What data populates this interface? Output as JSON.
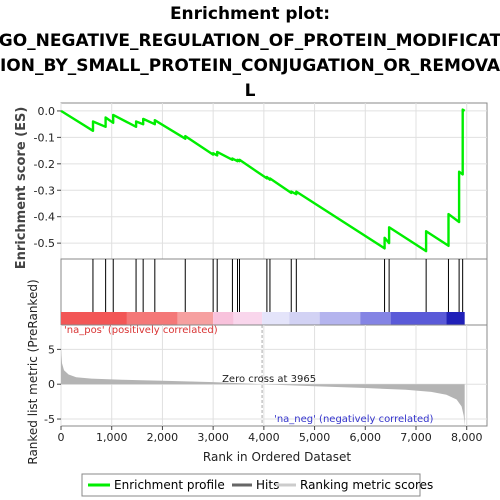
{
  "chart_data": {
    "type": "line",
    "title_lines": [
      "Enrichment plot:",
      "GO_NEGATIVE_REGULATION_OF_PROTEIN_MODIFICAT",
      "ION_BY_SMALL_PROTEIN_CONJUGATION_OR_REMOVA",
      "L"
    ],
    "xlabel": "Rank in Ordered Dataset",
    "es_ylabel": "Enrichment score (ES)",
    "metric_ylabel": "Ranked list metric (PreRanked)",
    "xlim": [
      0,
      8400
    ],
    "es_ylim": [
      -0.56,
      0.03
    ],
    "metric_ylim": [
      -6,
      8.5
    ],
    "x_ticks": [
      0,
      1000,
      2000,
      3000,
      4000,
      5000,
      6000,
      7000,
      8000
    ],
    "x_tick_labels": [
      "0",
      "1,000",
      "2,000",
      "3,000",
      "4,000",
      "5,000",
      "6,000",
      "7,000",
      "8,000"
    ],
    "es_ticks": [
      0.0,
      -0.1,
      -0.2,
      -0.3,
      -0.4,
      -0.5
    ],
    "es_tick_labels": [
      "0.0",
      "-0.1",
      "-0.2",
      "-0.3",
      "-0.4",
      "-0.5"
    ],
    "metric_ticks": [
      5,
      0,
      -5
    ],
    "metric_tick_labels": [
      "5",
      "0",
      "-5"
    ],
    "es_curve": {
      "name": "Enrichment profile",
      "color": "#00ee00",
      "points": [
        [
          0,
          0.0
        ],
        [
          630,
          -0.075
        ],
        [
          630,
          -0.04
        ],
        [
          880,
          -0.06
        ],
        [
          880,
          -0.025
        ],
        [
          1030,
          -0.045
        ],
        [
          1030,
          -0.015
        ],
        [
          1480,
          -0.06
        ],
        [
          1480,
          -0.04
        ],
        [
          1620,
          -0.05
        ],
        [
          1620,
          -0.03
        ],
        [
          1850,
          -0.05
        ],
        [
          1850,
          -0.035
        ],
        [
          2450,
          -0.105
        ],
        [
          2450,
          -0.095
        ],
        [
          3000,
          -0.165
        ],
        [
          3000,
          -0.16
        ],
        [
          3080,
          -0.168
        ],
        [
          3080,
          -0.155
        ],
        [
          3380,
          -0.185
        ],
        [
          3380,
          -0.18
        ],
        [
          3480,
          -0.19
        ],
        [
          3480,
          -0.185
        ],
        [
          3520,
          -0.19
        ],
        [
          3520,
          -0.185
        ],
        [
          4060,
          -0.255
        ],
        [
          4060,
          -0.25
        ],
        [
          4120,
          -0.26
        ],
        [
          4120,
          -0.255
        ],
        [
          4540,
          -0.31
        ],
        [
          4540,
          -0.305
        ],
        [
          4640,
          -0.315
        ],
        [
          4640,
          -0.305
        ],
        [
          6380,
          -0.52
        ],
        [
          6380,
          -0.48
        ],
        [
          6470,
          -0.5
        ],
        [
          6470,
          -0.44
        ],
        [
          7200,
          -0.53
        ],
        [
          7200,
          -0.455
        ],
        [
          7640,
          -0.51
        ],
        [
          7640,
          -0.39
        ],
        [
          7850,
          -0.42
        ],
        [
          7850,
          -0.23
        ],
        [
          7920,
          -0.24
        ],
        [
          7920,
          0.005
        ],
        [
          7960,
          0.0
        ]
      ]
    },
    "hits": {
      "name": "Hits",
      "color": "#000000",
      "ranks": [
        630,
        880,
        1030,
        1480,
        1620,
        1850,
        2450,
        3000,
        3080,
        3380,
        3480,
        3520,
        4060,
        4120,
        4540,
        4640,
        6380,
        6470,
        7200,
        7640,
        7850,
        7920
      ]
    },
    "ranking": {
      "name": "Ranking metric scores",
      "color": "#b4b4b4",
      "n_genes": 7960,
      "zero_cross": 3965,
      "zero_cross_label": "Zero cross at 3965",
      "pos_label": "'na_pos' (positively correlated)",
      "neg_label": "'na_neg' (negatively correlated)",
      "profile": [
        [
          0,
          5.2
        ],
        [
          20,
          3.0
        ],
        [
          60,
          2.0
        ],
        [
          150,
          1.4
        ],
        [
          300,
          1.0
        ],
        [
          600,
          0.8
        ],
        [
          1200,
          0.65
        ],
        [
          2000,
          0.5
        ],
        [
          3000,
          0.3
        ],
        [
          3965,
          0.0
        ],
        [
          5000,
          -0.3
        ],
        [
          6000,
          -0.55
        ],
        [
          6800,
          -0.8
        ],
        [
          7300,
          -1.1
        ],
        [
          7600,
          -1.5
        ],
        [
          7800,
          -2.2
        ],
        [
          7900,
          -3.2
        ],
        [
          7940,
          -4.5
        ],
        [
          7960,
          -6.0
        ]
      ]
    },
    "colorbar": [
      {
        "start": 0,
        "end": 1300,
        "color": "#f25656"
      },
      {
        "start": 1300,
        "end": 2300,
        "color": "#f47878"
      },
      {
        "start": 2300,
        "end": 3000,
        "color": "#f6a0a0"
      },
      {
        "start": 3000,
        "end": 3400,
        "color": "#f8c2dc"
      },
      {
        "start": 3400,
        "end": 3965,
        "color": "#f9d6ec"
      },
      {
        "start": 3965,
        "end": 4500,
        "color": "#e4e4fa"
      },
      {
        "start": 4500,
        "end": 5100,
        "color": "#d2d2f4"
      },
      {
        "start": 5100,
        "end": 5900,
        "color": "#b4b4ee"
      },
      {
        "start": 5900,
        "end": 6500,
        "color": "#8484e4"
      },
      {
        "start": 6500,
        "end": 7600,
        "color": "#5a5ad8"
      },
      {
        "start": 7600,
        "end": 7960,
        "color": "#2020b8"
      }
    ],
    "grid": true,
    "legend_position": "bottom",
    "legend": [
      {
        "name": "Enrichment profile",
        "color": "#00ee00"
      },
      {
        "name": "Hits",
        "color": "#666666"
      },
      {
        "name": "Ranking metric scores",
        "color": "#cccccc"
      }
    ]
  }
}
